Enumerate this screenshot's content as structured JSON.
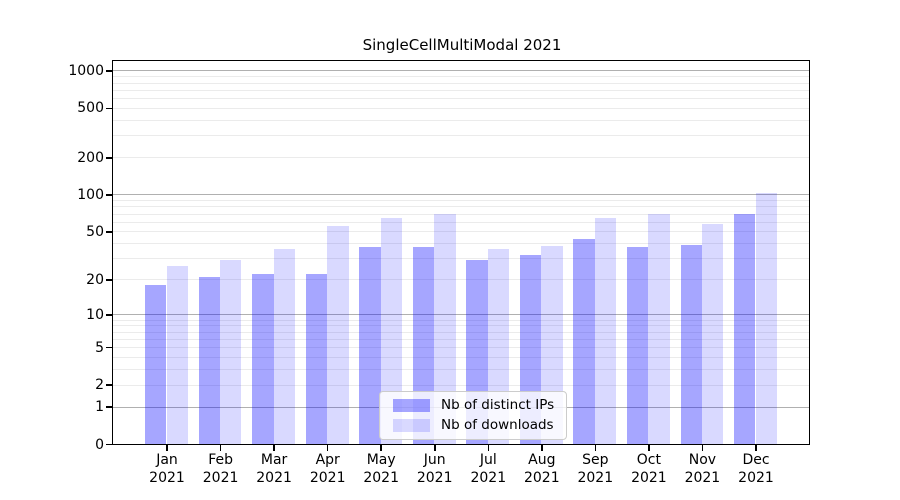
{
  "chart_data": {
    "type": "bar",
    "title": "SingleCellMultiModal 2021",
    "months": [
      "Jan",
      "Feb",
      "Mar",
      "Apr",
      "May",
      "Jun",
      "Jul",
      "Aug",
      "Sep",
      "Oct",
      "Nov",
      "Dec"
    ],
    "year": "2021",
    "series": [
      {
        "name": "Nb of distinct IPs",
        "color": "rgba(0,0,255,0.35)",
        "values": [
          18,
          21,
          22,
          22,
          37,
          37,
          29,
          32,
          43,
          37,
          39,
          70
        ]
      },
      {
        "name": "Nb of downloads",
        "color": "rgba(0,0,255,0.15)",
        "values": [
          26,
          29,
          36,
          55,
          64,
          70,
          36,
          38,
          64,
          69,
          57,
          102
        ]
      }
    ],
    "yscale": "log1p",
    "ylim": [
      0,
      1190
    ],
    "yticks": [
      0,
      1,
      2,
      5,
      10,
      20,
      50,
      100,
      200,
      500,
      1000
    ],
    "grid": {
      "major_values": [
        1,
        10,
        100,
        1000
      ],
      "major_color": "#b0b0b0",
      "minor_color": "#ebebeb",
      "axisbelow": true
    },
    "legend": {
      "position": "lower-center",
      "background": "rgba(255,255,255,0.8)",
      "border_color": "#cccccc"
    },
    "xlabel": "",
    "ylabel": ""
  }
}
